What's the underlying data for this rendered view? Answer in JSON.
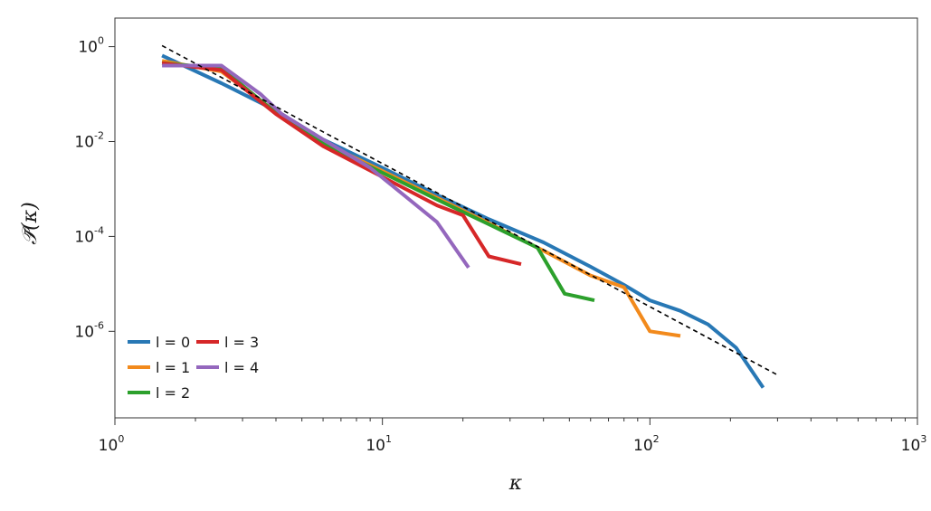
{
  "chart_data": {
    "type": "line",
    "title": "",
    "xlabel": "κ",
    "ylabel": "𝒫̄(κ)",
    "xscale": "log",
    "yscale": "log",
    "xlim": [
      1,
      1000
    ],
    "ylim": [
      1.5e-08,
      4
    ],
    "grid": false,
    "legend_position": "bottom-left",
    "x_ticks": [
      {
        "value": 1,
        "base": "10",
        "exp": "0"
      },
      {
        "value": 10,
        "base": "10",
        "exp": "1"
      },
      {
        "value": 100,
        "base": "10",
        "exp": "2"
      },
      {
        "value": 1000,
        "base": "10",
        "exp": "3"
      }
    ],
    "y_ticks": [
      {
        "value": 1,
        "base": "10",
        "exp": "0"
      },
      {
        "value": 0.01,
        "base": "10",
        "exp": "-2"
      },
      {
        "value": 0.0001,
        "base": "10",
        "exp": "-4"
      },
      {
        "value": 1e-06,
        "base": "10",
        "exp": "-6"
      }
    ],
    "series": [
      {
        "name": "l = 0",
        "color": "#2878b5",
        "x": [
          1.5,
          2.5,
          4,
          6,
          10,
          16,
          25,
          40,
          60,
          80,
          100,
          130,
          165,
          210,
          265
        ],
        "y": [
          0.65,
          0.17,
          0.045,
          0.011,
          0.0028,
          0.00075,
          0.00023,
          7.5e-05,
          2.3e-05,
          9.5e-06,
          4.5e-06,
          2.7e-06,
          1.4e-06,
          4.5e-07,
          6.5e-08
        ]
      },
      {
        "name": "l = 1",
        "color": "#f28a1c",
        "x": [
          1.5,
          2.5,
          4,
          6,
          10,
          16,
          25,
          40,
          60,
          80,
          100,
          130
        ],
        "y": [
          0.5,
          0.3,
          0.042,
          0.0095,
          0.0024,
          0.00065,
          0.00019,
          5e-05,
          1.5e-05,
          8.5e-06,
          1e-06,
          8e-07
        ]
      },
      {
        "name": "l = 2",
        "color": "#2ca02c",
        "x": [
          1.5,
          2.5,
          4,
          6,
          10,
          16,
          25,
          38,
          48,
          62
        ],
        "y": [
          0.45,
          0.35,
          0.04,
          0.009,
          0.0022,
          0.0006,
          0.00018,
          5.8e-05,
          6.2e-06,
          4.5e-06
        ]
      },
      {
        "name": "l = 3",
        "color": "#d62728",
        "x": [
          1.5,
          2.5,
          4,
          6,
          10,
          16,
          20,
          25,
          33
        ],
        "y": [
          0.45,
          0.32,
          0.038,
          0.008,
          0.0018,
          0.00045,
          0.00028,
          3.8e-05,
          2.6e-05
        ]
      },
      {
        "name": "l = 4",
        "color": "#9467bd",
        "x": [
          1.5,
          2.5,
          3.5,
          4.2,
          6,
          9,
          12,
          16,
          21
        ],
        "y": [
          0.4,
          0.4,
          0.1,
          0.038,
          0.011,
          0.0028,
          0.00075,
          0.0002,
          2.2e-05
        ]
      }
    ],
    "reference_line": {
      "style": "dashed",
      "color": "#000000",
      "x": [
        1.5,
        300
      ],
      "y": [
        1.05,
        1.2e-07
      ]
    }
  }
}
